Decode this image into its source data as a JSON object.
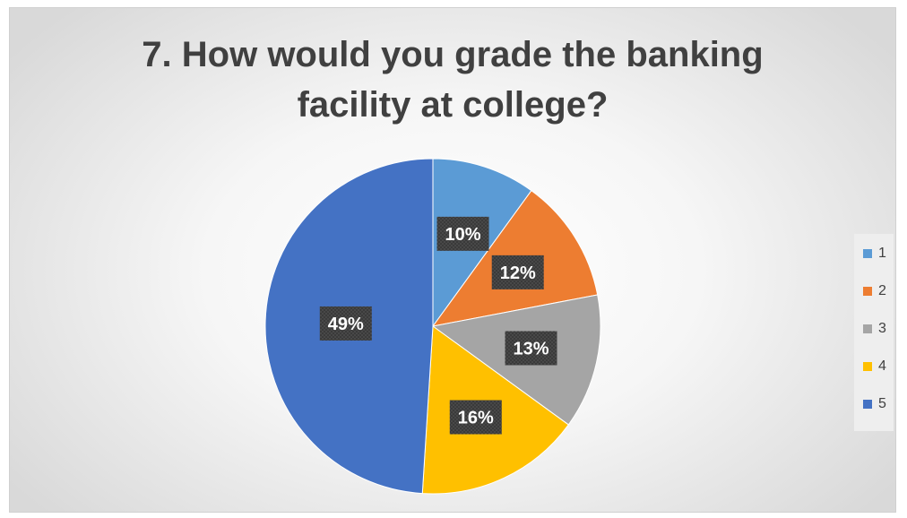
{
  "chart_data": {
    "type": "pie",
    "title": "7. How would you grade the banking facility at college?",
    "title_lines": [
      "7. How would you grade the banking",
      "facility at college?"
    ],
    "categories": [
      "1",
      "2",
      "3",
      "4",
      "5"
    ],
    "values": [
      10,
      12,
      13,
      16,
      49
    ],
    "labels": [
      "10%",
      "12%",
      "13%",
      "16%",
      "49%"
    ],
    "colors": [
      "#5B9BD5",
      "#ED7D31",
      "#A5A5A5",
      "#FFC000",
      "#4472C4"
    ],
    "legend_position": "right",
    "data_label_style": "dark-boxed"
  }
}
